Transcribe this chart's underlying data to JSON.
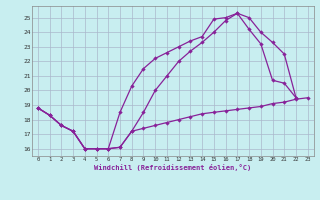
{
  "xlabel": "Windchill (Refroidissement éolien,°C)",
  "background_color": "#c8eef0",
  "grid_color": "#aab8cc",
  "line_color": "#882299",
  "x_ticks": [
    0,
    1,
    2,
    3,
    4,
    5,
    6,
    7,
    8,
    9,
    10,
    11,
    12,
    13,
    14,
    15,
    16,
    17,
    18,
    19,
    20,
    21,
    22,
    23
  ],
  "y_ticks": [
    16,
    17,
    18,
    19,
    20,
    21,
    22,
    23,
    24,
    25
  ],
  "xlim": [
    -0.5,
    23.5
  ],
  "ylim": [
    15.5,
    25.8
  ],
  "line1_x": [
    0,
    1,
    2,
    3,
    4,
    5,
    6,
    7,
    8,
    9,
    10,
    11,
    12,
    13,
    14,
    15,
    16,
    17,
    18,
    19,
    20,
    21,
    22,
    23
  ],
  "line1_y": [
    18.8,
    18.3,
    17.6,
    17.2,
    16.0,
    16.0,
    16.0,
    16.1,
    17.2,
    17.4,
    17.6,
    17.8,
    18.0,
    18.2,
    18.4,
    18.5,
    18.6,
    18.7,
    18.8,
    18.9,
    19.1,
    19.2,
    19.4,
    19.5
  ],
  "line2_x": [
    0,
    1,
    2,
    3,
    4,
    5,
    6,
    7,
    8,
    9,
    10,
    11,
    12,
    13,
    14,
    15,
    16,
    17,
    18,
    19,
    20,
    21,
    22
  ],
  "line2_y": [
    18.8,
    18.3,
    17.6,
    17.2,
    16.0,
    16.0,
    16.0,
    16.1,
    17.2,
    18.5,
    20.0,
    21.0,
    22.0,
    22.7,
    23.3,
    24.0,
    24.8,
    25.3,
    24.2,
    23.2,
    20.7,
    20.5,
    19.5
  ],
  "line3_x": [
    0,
    1,
    2,
    3,
    4,
    5,
    6,
    7,
    8,
    9,
    10,
    11,
    12,
    13,
    14,
    15,
    16,
    17,
    18,
    19,
    20,
    21,
    22
  ],
  "line3_y": [
    18.8,
    18.3,
    17.6,
    17.2,
    16.0,
    16.0,
    16.0,
    18.5,
    20.3,
    21.5,
    22.2,
    22.6,
    23.0,
    23.4,
    23.7,
    24.9,
    25.0,
    25.3,
    25.0,
    24.0,
    23.3,
    22.5,
    19.5
  ]
}
